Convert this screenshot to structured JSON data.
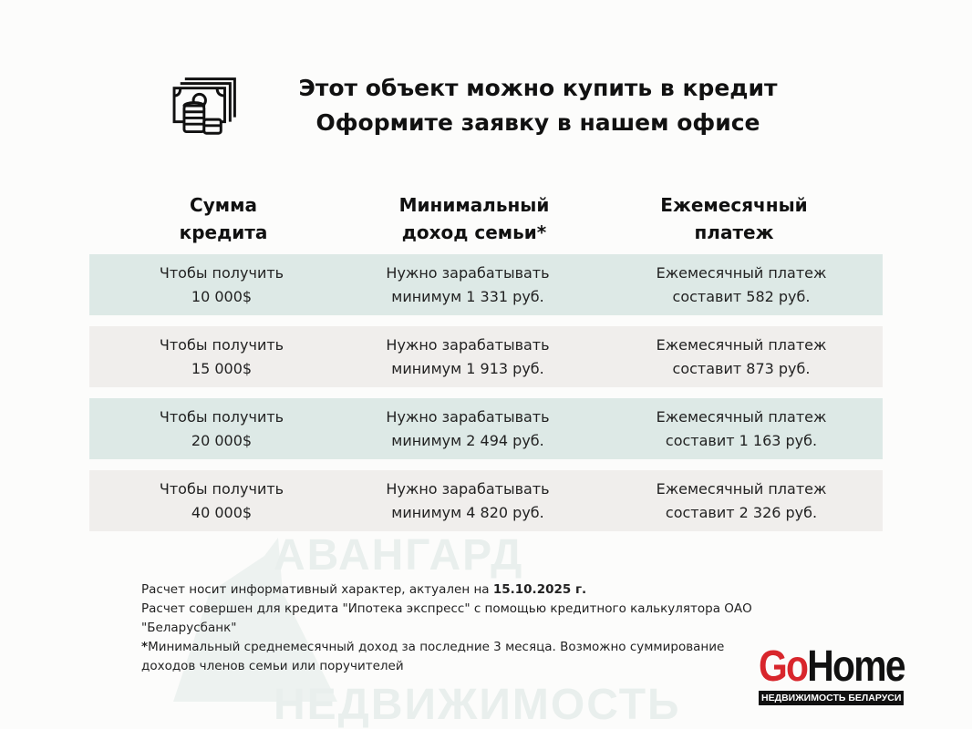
{
  "title": {
    "line1": "Этот объект можно купить в кредит",
    "line2": "Оформите заявку в нашем офисе"
  },
  "icon": "money-coins-icon",
  "headers": {
    "col1": [
      "Сумма",
      "кредита"
    ],
    "col2": [
      "Минимальный",
      "доход семьи*"
    ],
    "col3": [
      "Ежемесячный",
      "платеж"
    ]
  },
  "rows": [
    {
      "col1": [
        "Чтобы получить",
        "10 000$"
      ],
      "col2": [
        "Нужно зарабатывать",
        "минимум 1 331 руб."
      ],
      "col3": [
        "Ежемесячный платеж",
        "составит 582 руб."
      ]
    },
    {
      "col1": [
        "Чтобы получить",
        "15 000$"
      ],
      "col2": [
        "Нужно зарабатывать",
        "минимум 1 913 руб."
      ],
      "col3": [
        "Ежемесячный платеж",
        "составит 873 руб."
      ]
    },
    {
      "col1": [
        "Чтобы получить",
        "20 000$"
      ],
      "col2": [
        "Нужно зарабатывать",
        "минимум 2 494 руб."
      ],
      "col3": [
        "Ежемесячный платеж",
        "составит 1 163 руб."
      ]
    },
    {
      "col1": [
        "Чтобы получить",
        "40 000$"
      ],
      "col2": [
        "Нужно зарабатывать",
        "минимум 4 820 руб."
      ],
      "col3": [
        "Ежемесячный платеж",
        "составит 2 326 руб."
      ]
    }
  ],
  "row_colors": [
    "#dde9e6",
    "#f0eeec",
    "#dde9e6",
    "#f0eeec"
  ],
  "notes": {
    "line1_prefix": "Расчет носит информативный характер, актуален на ",
    "line1_date": "15.10.2025 г.",
    "line2": "Расчет совершен для кредита \"Ипотека экспресс\" с помощью кредитного калькулятора ОАО \"Беларусбанк\"",
    "star": "*",
    "line3": "Минимальный среднемесячный доход за последние 3 месяца. Возможно суммирование доходов членов семьи или поручителей"
  },
  "watermark": {
    "line1": "АВАНГАРД",
    "line2": "НЕДВИЖИМОСТЬ"
  },
  "logo": {
    "go": "Go",
    "home": "Home",
    "tagline": "НЕДВИЖИМОСТЬ БЕЛАРУСИ",
    "accent": "#d8262c"
  }
}
